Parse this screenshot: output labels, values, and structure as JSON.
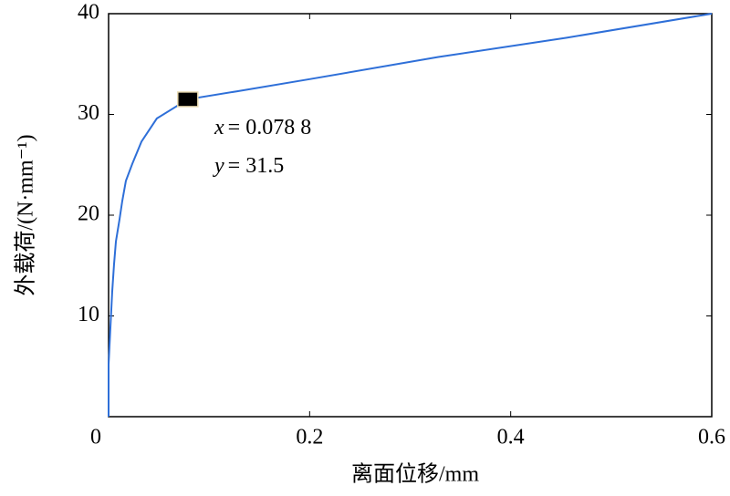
{
  "chart_data": {
    "type": "line",
    "xlabel": "离面位移/mm",
    "ylabel": "外载荷/(N·mm⁻¹)",
    "x": [
      0,
      0,
      0.0018,
      0.0036,
      0.0054,
      0.0073,
      0.0109,
      0.0136,
      0.0172,
      0.0236,
      0.0327,
      0.048,
      0.0788,
      0.128,
      0.2,
      0.328,
      0.455,
      0.6
    ],
    "series": [
      {
        "name": "外载荷",
        "color": "#2e6fd8",
        "values": [
          0,
          5.2,
          8.8,
          12.4,
          15.1,
          17.4,
          19.6,
          21.4,
          23.4,
          25.1,
          27.3,
          29.6,
          31.5,
          32.3,
          33.5,
          35.7,
          37.6,
          40
        ]
      }
    ],
    "xlim": [
      0,
      0.6
    ],
    "xticks": [
      0,
      0.2,
      0.4,
      0.6
    ],
    "ylim": [
      0,
      40
    ],
    "yticks": [
      10,
      20,
      30,
      40
    ],
    "marker": {
      "x": 0.0788,
      "y": 31.5
    },
    "annotations": [
      {
        "var": "x",
        "text": "= 0.078 8"
      },
      {
        "var": "y",
        "text": "= 31.5"
      }
    ]
  }
}
